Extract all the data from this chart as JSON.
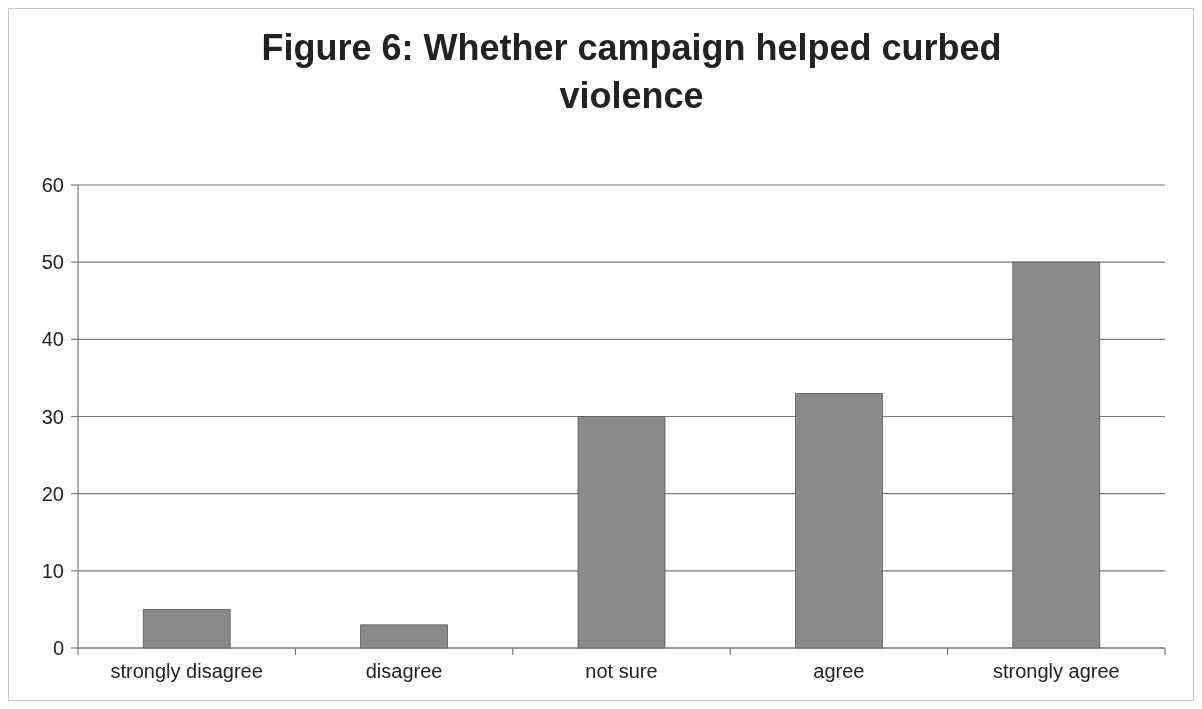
{
  "chart_data": {
    "type": "bar",
    "title": "Figure 6: Whether campaign helped curbed violence",
    "categories": [
      "strongly disagree",
      "disagree",
      "not sure",
      "agree",
      "strongly agree"
    ],
    "values": [
      5,
      3,
      30,
      33,
      50
    ],
    "color": "#8a8a8a",
    "ylim": [
      0,
      60
    ],
    "yticks": [
      0,
      10,
      20,
      30,
      40,
      50,
      60
    ],
    "grid": "y"
  }
}
